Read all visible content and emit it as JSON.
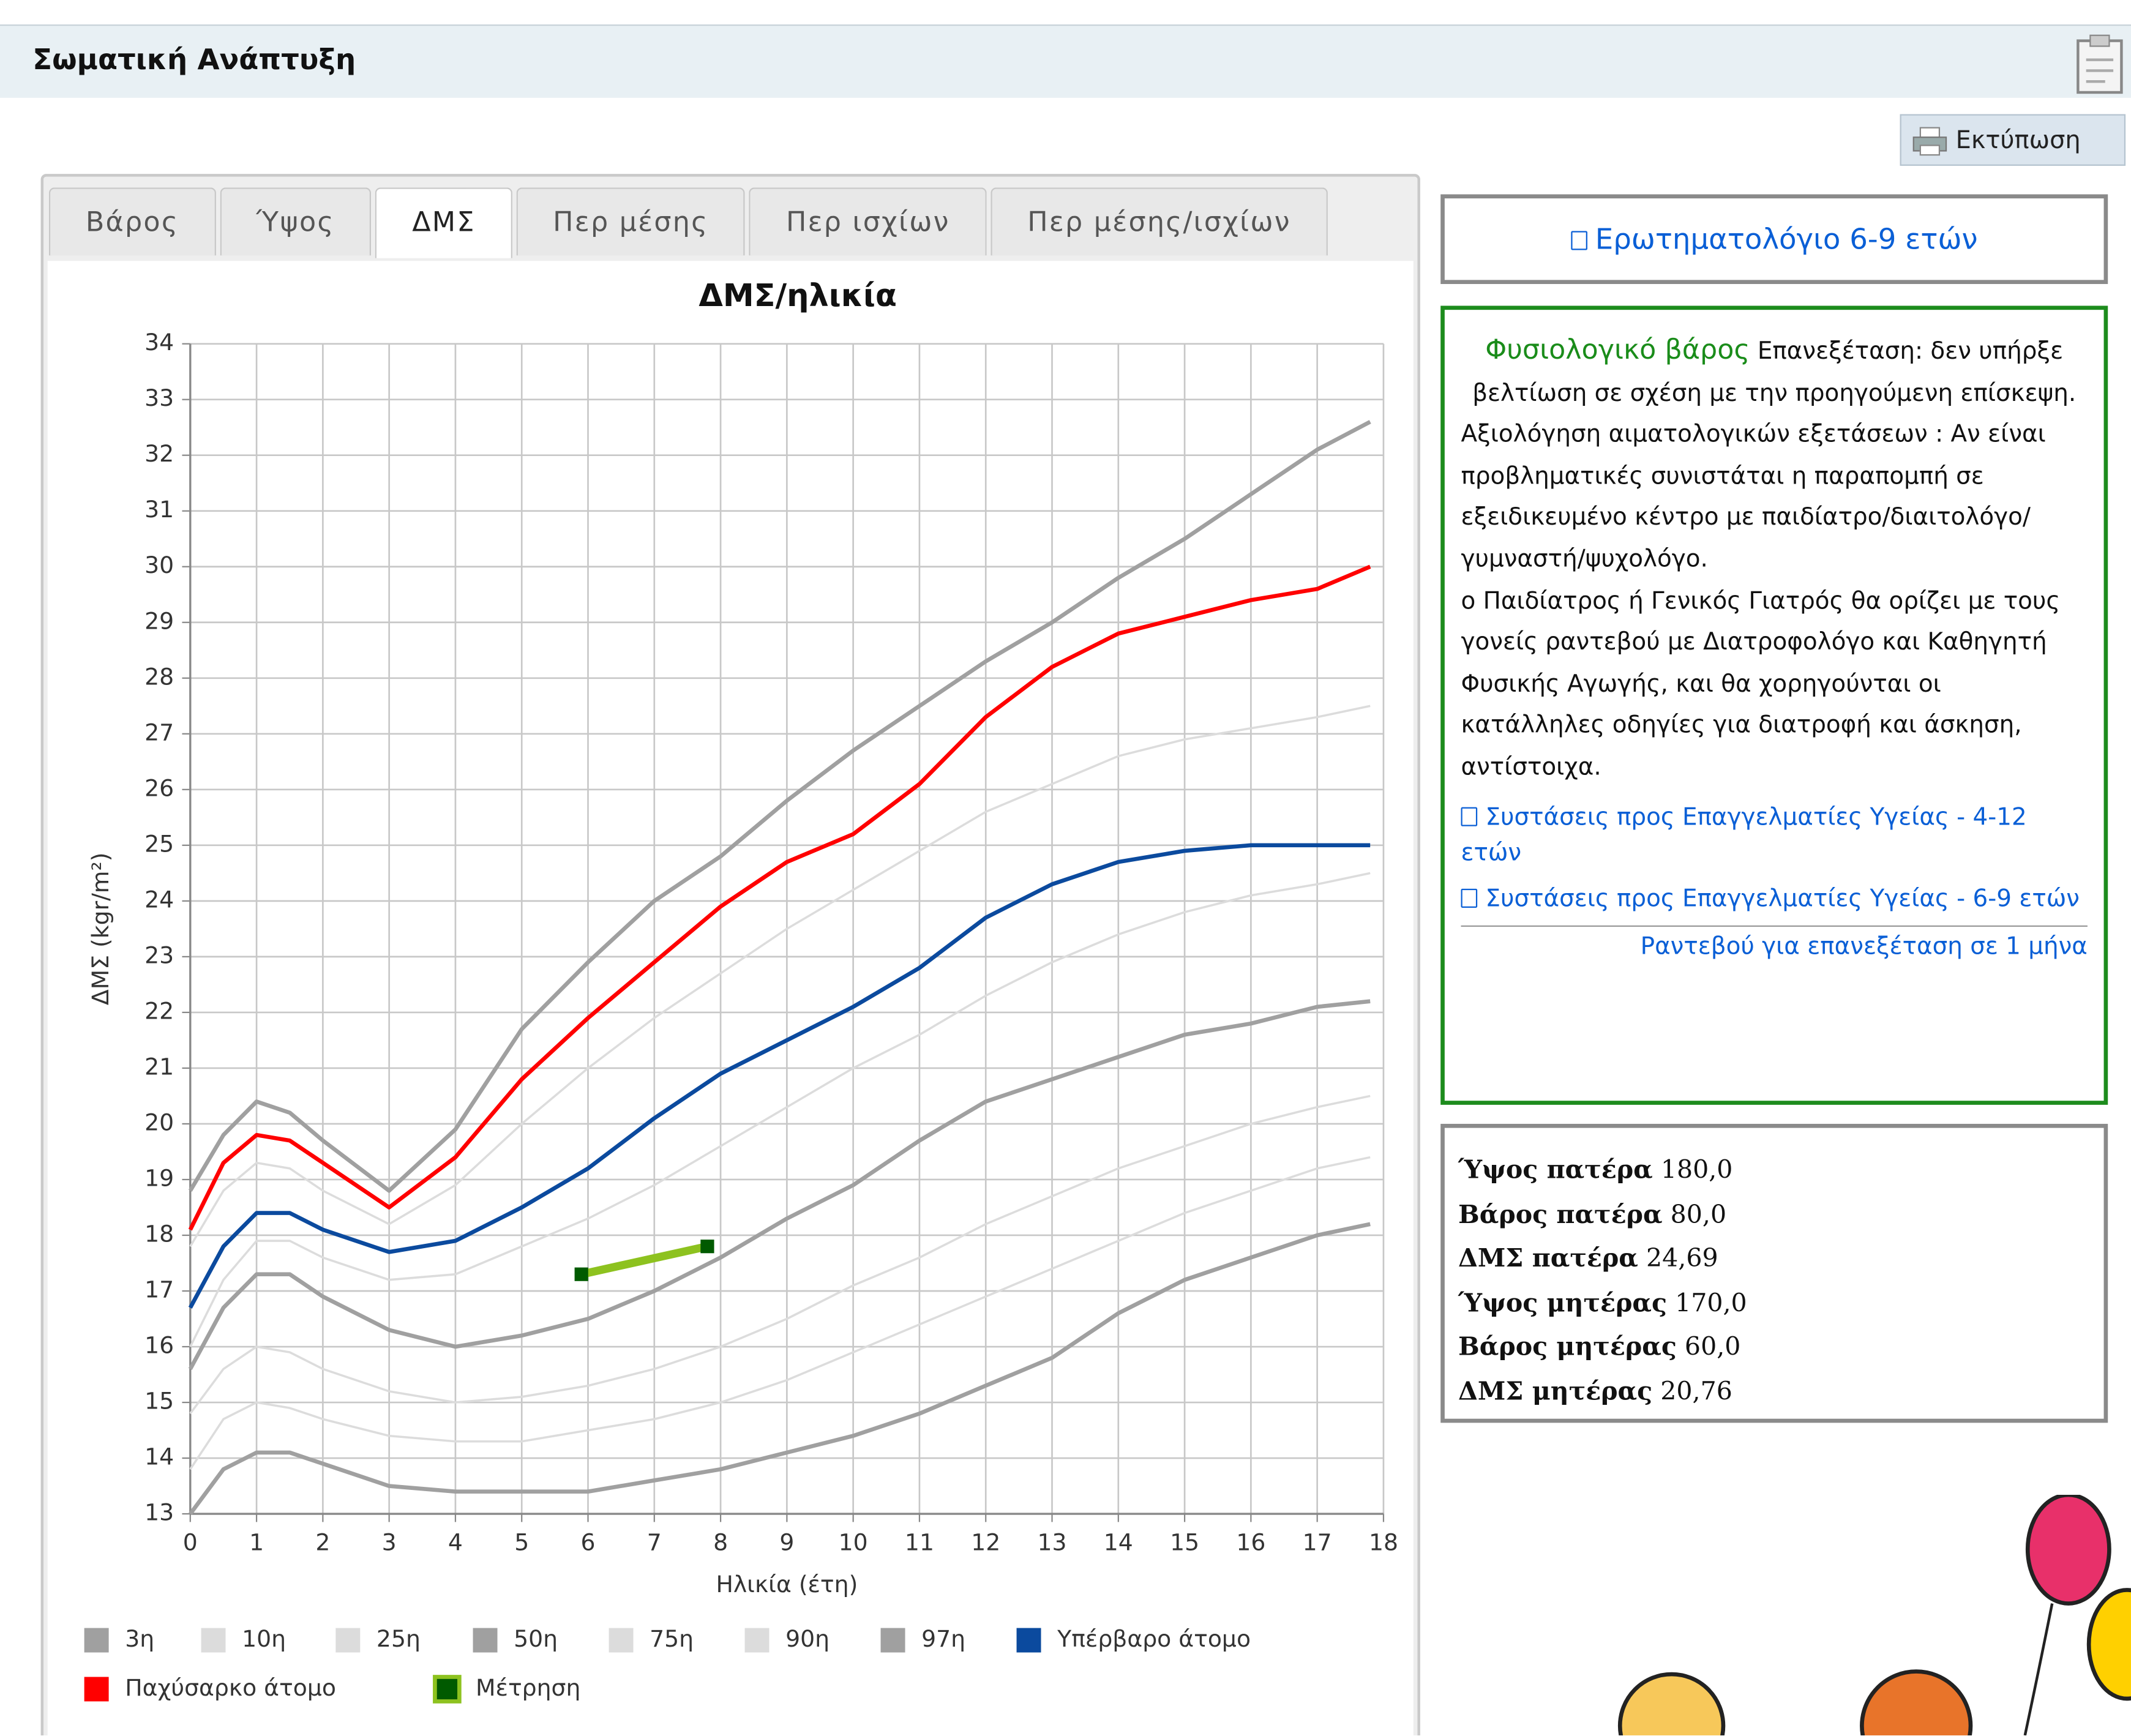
{
  "header": {
    "title": "Σωματική Ανάπτυξη",
    "print": "Εκτύπωση"
  },
  "tabs": [
    "Βάρος",
    "Ύψος",
    "ΔΜΣ",
    "Περ μέσης",
    "Περ ισχίων",
    "Περ μέσης/ισχίων"
  ],
  "active_tab": 2,
  "chart_data": {
    "type": "line",
    "title": "ΔΜΣ/ηλικία",
    "x_label": "Ηλικία (έτη)",
    "y_label": "ΔΜΣ (kgr/m²)",
    "x": [
      0,
      0.5,
      1,
      1.5,
      2,
      3,
      4,
      5,
      6,
      7,
      8,
      9,
      10,
      11,
      12,
      13,
      14,
      15,
      16,
      17,
      17.8
    ],
    "xlim": [
      0,
      18
    ],
    "ylim": [
      13,
      34
    ],
    "xticks": [
      0,
      1,
      2,
      3,
      4,
      5,
      6,
      7,
      8,
      9,
      10,
      11,
      12,
      13,
      14,
      15,
      16,
      17,
      18
    ],
    "yticks": [
      13,
      14,
      15,
      16,
      17,
      18,
      19,
      20,
      21,
      22,
      23,
      24,
      25,
      26,
      27,
      28,
      29,
      30,
      31,
      32,
      33,
      34
    ],
    "grid": true,
    "series": [
      {
        "name": "3η",
        "color": "#a0a0a0",
        "values": [
          13.0,
          13.8,
          14.1,
          14.1,
          13.9,
          13.5,
          13.4,
          13.4,
          13.4,
          13.6,
          13.8,
          14.1,
          14.4,
          14.8,
          15.3,
          15.8,
          16.6,
          17.2,
          17.6,
          18.0,
          18.2
        ]
      },
      {
        "name": "10η",
        "color": "#dcdcdc",
        "values": [
          13.8,
          14.7,
          15.0,
          14.9,
          14.7,
          14.4,
          14.3,
          14.3,
          14.5,
          14.7,
          15.0,
          15.4,
          15.9,
          16.4,
          16.9,
          17.4,
          17.9,
          18.4,
          18.8,
          19.2,
          19.4
        ]
      },
      {
        "name": "25η",
        "color": "#dcdcdc",
        "values": [
          14.8,
          15.6,
          16.0,
          15.9,
          15.6,
          15.2,
          15.0,
          15.1,
          15.3,
          15.6,
          16.0,
          16.5,
          17.1,
          17.6,
          18.2,
          18.7,
          19.2,
          19.6,
          20.0,
          20.3,
          20.5
        ]
      },
      {
        "name": "50η",
        "color": "#a0a0a0",
        "values": [
          15.6,
          16.7,
          17.3,
          17.3,
          16.9,
          16.3,
          16.0,
          16.2,
          16.5,
          17.0,
          17.6,
          18.3,
          18.9,
          19.7,
          20.4,
          20.8,
          21.2,
          21.6,
          21.8,
          22.1,
          22.2
        ]
      },
      {
        "name": "75η",
        "color": "#dcdcdc",
        "values": [
          16.0,
          17.2,
          17.9,
          17.9,
          17.6,
          17.2,
          17.3,
          17.8,
          18.3,
          18.9,
          19.6,
          20.3,
          21.0,
          21.6,
          22.3,
          22.9,
          23.4,
          23.8,
          24.1,
          24.3,
          24.5
        ]
      },
      {
        "name": "90η",
        "color": "#dcdcdc",
        "values": [
          17.8,
          18.8,
          19.3,
          19.2,
          18.8,
          18.2,
          18.9,
          20.0,
          21.0,
          21.9,
          22.7,
          23.5,
          24.2,
          24.9,
          25.6,
          26.1,
          26.6,
          26.9,
          27.1,
          27.3,
          27.5
        ]
      },
      {
        "name": "97η",
        "color": "#a0a0a0",
        "values": [
          18.8,
          19.8,
          20.4,
          20.2,
          19.7,
          18.8,
          19.9,
          21.7,
          22.9,
          24.0,
          24.8,
          25.8,
          26.7,
          27.5,
          28.3,
          29.0,
          29.8,
          30.5,
          31.3,
          32.1,
          32.6
        ]
      },
      {
        "name": "Υπέρβαρο άτομο",
        "color": "#0b4a9e",
        "values": [
          16.7,
          17.8,
          18.4,
          18.4,
          18.1,
          17.7,
          17.9,
          18.5,
          19.2,
          20.1,
          20.9,
          21.5,
          22.1,
          22.8,
          23.7,
          24.3,
          24.7,
          24.9,
          25.0,
          25.0,
          25.0
        ]
      },
      {
        "name": "Παχύσαρκο άτομο",
        "color": "#ff0000",
        "values": [
          18.1,
          19.3,
          19.8,
          19.7,
          19.3,
          18.5,
          19.4,
          20.8,
          21.9,
          22.9,
          23.9,
          24.7,
          25.2,
          26.1,
          27.3,
          28.2,
          28.8,
          29.1,
          29.4,
          29.6,
          30.0
        ]
      },
      {
        "name": "Μέτρηση",
        "color": "#8dc21f",
        "marker_color": "#005a00",
        "x": [
          5.9,
          7.8
        ],
        "values": [
          17.3,
          17.8
        ]
      }
    ]
  },
  "side": {
    "questionnaire": "Ερωτηματολόγιο 6-9 ετών",
    "status": "Φυσιολογικό βάρος",
    "status_text": "Επανεξέταση: δεν υπήρξε βελτίωση σε σχέση με την προηγούμενη επίσκεψη.",
    "paragraphs": [
      "Αξιολόγηση αιματολογικών εξετάσεων : Αν είναι προβληματικές συνιστάται η παραπομπή σε εξειδικευμένο κέντρο με παιδίατρο/διαιτολόγο/γυμναστή/ψυχολόγο.",
      "ο Παιδίατρος ή Γενικός Γιατρός θα ορίζει με τους γονείς ραντεβού με Διατροφολόγο και Καθηγητή Φυσικής Αγωγής, και θα χορηγούνται οι κατάλληλες οδηγίες για διατροφή και άσκηση, αντίστοιχα."
    ],
    "links": [
      "Συστάσεις προς Επαγγελματίες Υγείας - 4-12 ετών",
      "Συστάσεις προς Επαγγελματίες Υγείας - 6-9 ετών"
    ],
    "appointment": "Ραντεβού για επανεξέταση σε 1 μήνα"
  },
  "parents": [
    {
      "label": "Ύψος πατέρα",
      "value": "180,0"
    },
    {
      "label": "Βάρος πατέρα",
      "value": "80,0"
    },
    {
      "label": "ΔΜΣ πατέρα",
      "value": "24,69"
    },
    {
      "label": "Ύψος μητέρας",
      "value": "170,0"
    },
    {
      "label": "Βάρος μητέρας",
      "value": "60,0"
    },
    {
      "label": "ΔΜΣ μητέρας",
      "value": "20,76"
    }
  ]
}
